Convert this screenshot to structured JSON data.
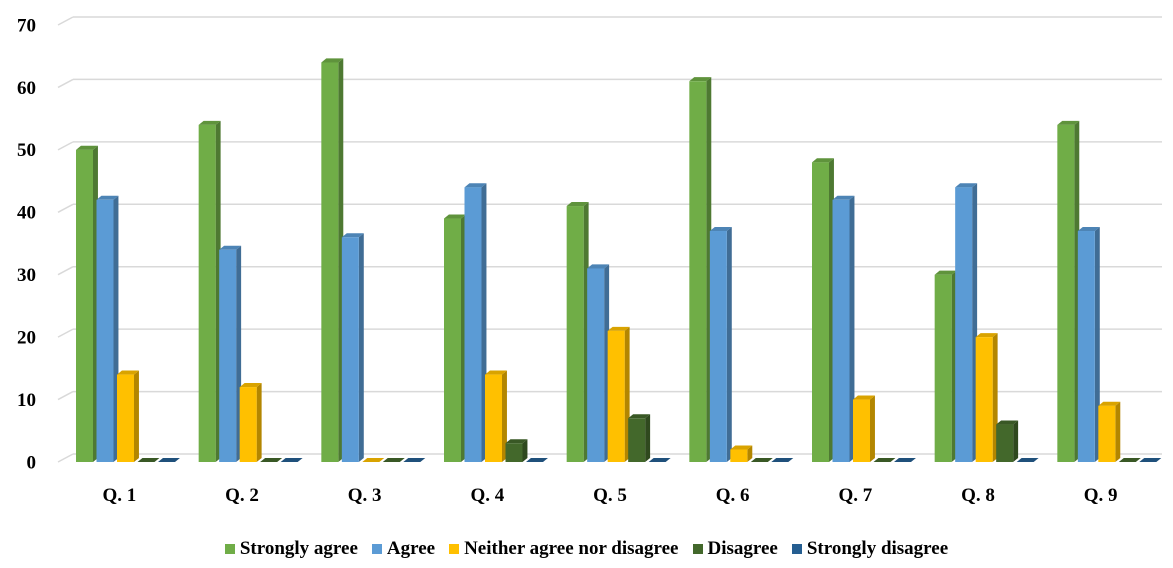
{
  "chart_data": {
    "type": "bar",
    "title": "",
    "xlabel": "",
    "ylabel": "",
    "ylim": [
      0,
      70
    ],
    "yticks": [
      0,
      10,
      20,
      30,
      40,
      50,
      60,
      70
    ],
    "grid": true,
    "legend_position": "bottom",
    "categories": [
      "Q. 1",
      "Q. 2",
      "Q. 3",
      "Q. 4",
      "Q. 5",
      "Q. 6",
      "Q. 7",
      "Q. 8",
      "Q. 9"
    ],
    "series": [
      {
        "name": "Strongly agree",
        "color": "#70ad47",
        "values": [
          50,
          54,
          64,
          39,
          41,
          61,
          48,
          30,
          54
        ]
      },
      {
        "name": "Agree",
        "color": "#5b9bd5",
        "values": [
          42,
          34,
          36,
          44,
          31,
          37,
          42,
          44,
          37
        ]
      },
      {
        "name": "Neither agree nor disagree",
        "color": "#ffc000",
        "values": [
          14,
          12,
          0,
          14,
          21,
          2,
          10,
          20,
          9
        ]
      },
      {
        "name": "Disagree",
        "color": "#43682b",
        "values": [
          0,
          0,
          0,
          3,
          7,
          0,
          0,
          6,
          0
        ]
      },
      {
        "name": "Strongly disagree",
        "color": "#255e91",
        "values": [
          0,
          0,
          0,
          0,
          0,
          0,
          0,
          0,
          0
        ]
      }
    ]
  }
}
